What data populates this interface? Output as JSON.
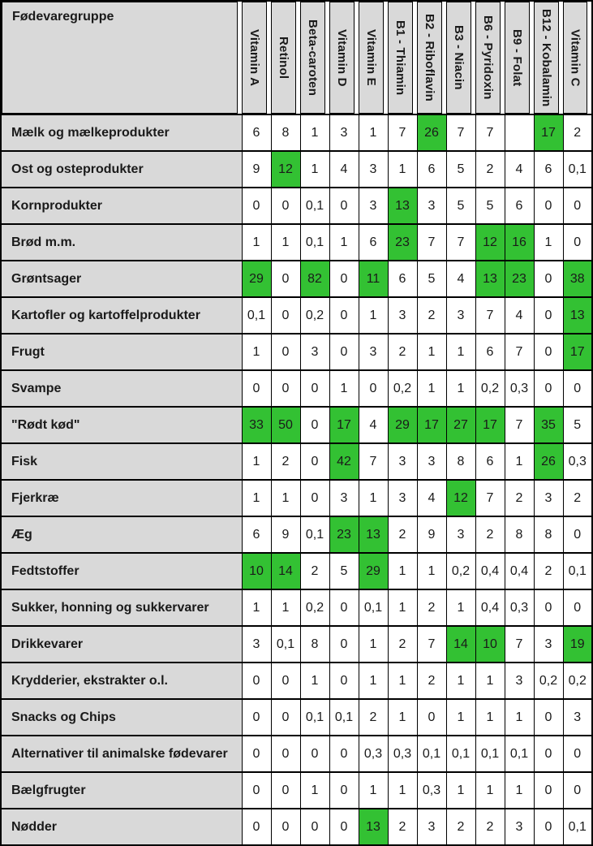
{
  "chart_data": {
    "type": "table",
    "corner_label": "Fødevaregruppe",
    "columns": [
      "Vitamin A",
      "Retinol",
      "Beta-caroten",
      "Vitamin D",
      "Vitamin E",
      "B1 - Thiamin",
      "B2 - Riboflavin",
      "B3 - Niacin",
      "B6 - Pyridoxin",
      "B9 - Folat",
      "B12 - Kobalamin",
      "Vitamin C"
    ],
    "rows": [
      {
        "label": "Mælk og mælkeprodukter",
        "values": [
          "6",
          "8",
          "1",
          "3",
          "1",
          "7",
          "26",
          "7",
          "7",
          "",
          "17",
          "2"
        ],
        "highlighted": [
          6,
          10
        ]
      },
      {
        "label": "Ost og osteprodukter",
        "values": [
          "9",
          "12",
          "1",
          "4",
          "3",
          "1",
          "6",
          "5",
          "2",
          "4",
          "6",
          "0,1"
        ],
        "highlighted": [
          1
        ]
      },
      {
        "label": "Kornprodukter",
        "values": [
          "0",
          "0",
          "0,1",
          "0",
          "3",
          "13",
          "3",
          "5",
          "5",
          "6",
          "0",
          "0"
        ],
        "highlighted": [
          5
        ]
      },
      {
        "label": "Brød m.m.",
        "values": [
          "1",
          "1",
          "0,1",
          "1",
          "6",
          "23",
          "7",
          "7",
          "12",
          "16",
          "1",
          "0"
        ],
        "highlighted": [
          5,
          8,
          9
        ]
      },
      {
        "label": "Grøntsager",
        "values": [
          "29",
          "0",
          "82",
          "0",
          "11",
          "6",
          "5",
          "4",
          "13",
          "23",
          "0",
          "38"
        ],
        "highlighted": [
          0,
          2,
          4,
          8,
          9,
          11
        ]
      },
      {
        "label": "Kartofler og kartoffelprodukter",
        "values": [
          "0,1",
          "0",
          "0,2",
          "0",
          "1",
          "3",
          "2",
          "3",
          "7",
          "4",
          "0",
          "13"
        ],
        "highlighted": [
          11
        ]
      },
      {
        "label": "Frugt",
        "values": [
          "1",
          "0",
          "3",
          "0",
          "3",
          "2",
          "1",
          "1",
          "6",
          "7",
          "0",
          "17"
        ],
        "highlighted": [
          11
        ]
      },
      {
        "label": "Svampe",
        "values": [
          "0",
          "0",
          "0",
          "1",
          "0",
          "0,2",
          "1",
          "1",
          "0,2",
          "0,3",
          "0",
          "0"
        ],
        "highlighted": []
      },
      {
        "label": "\"Rødt kød\"",
        "values": [
          "33",
          "50",
          "0",
          "17",
          "4",
          "29",
          "17",
          "27",
          "17",
          "7",
          "35",
          "5"
        ],
        "highlighted": [
          0,
          1,
          3,
          5,
          6,
          7,
          8,
          10
        ]
      },
      {
        "label": "Fisk",
        "values": [
          "1",
          "2",
          "0",
          "42",
          "7",
          "3",
          "3",
          "8",
          "6",
          "1",
          "26",
          "0,3"
        ],
        "highlighted": [
          3,
          10
        ]
      },
      {
        "label": "Fjerkræ",
        "values": [
          "1",
          "1",
          "0",
          "3",
          "1",
          "3",
          "4",
          "12",
          "7",
          "2",
          "3",
          "2"
        ],
        "highlighted": [
          7
        ]
      },
      {
        "label": "Æg",
        "values": [
          "6",
          "9",
          "0,1",
          "23",
          "13",
          "2",
          "9",
          "3",
          "2",
          "8",
          "8",
          "0"
        ],
        "highlighted": [
          3,
          4
        ]
      },
      {
        "label": "Fedtstoffer",
        "values": [
          "10",
          "14",
          "2",
          "5",
          "29",
          "1",
          "1",
          "0,2",
          "0,4",
          "0,4",
          "2",
          "0,1"
        ],
        "highlighted": [
          0,
          1,
          4
        ]
      },
      {
        "label": "Sukker, honning og sukkervarer",
        "values": [
          "1",
          "1",
          "0,2",
          "0",
          "0,1",
          "1",
          "2",
          "1",
          "0,4",
          "0,3",
          "0",
          "0"
        ],
        "highlighted": []
      },
      {
        "label": "Drikkevarer",
        "values": [
          "3",
          "0,1",
          "8",
          "0",
          "1",
          "2",
          "7",
          "14",
          "10",
          "7",
          "3",
          "19"
        ],
        "highlighted": [
          7,
          8,
          11
        ]
      },
      {
        "label": "Krydderier, ekstrakter o.l.",
        "values": [
          "0",
          "0",
          "1",
          "0",
          "1",
          "1",
          "2",
          "1",
          "1",
          "3",
          "0,2",
          "0,2"
        ],
        "highlighted": []
      },
      {
        "label": "Snacks og Chips",
        "values": [
          "0",
          "0",
          "0,1",
          "0,1",
          "2",
          "1",
          "0",
          "1",
          "1",
          "1",
          "0",
          "3"
        ],
        "highlighted": []
      },
      {
        "label": "Alternativer til animalske fødevarer",
        "values": [
          "0",
          "0",
          "0",
          "0",
          "0,3",
          "0,3",
          "0,1",
          "0,1",
          "0,1",
          "0,1",
          "0",
          "0"
        ],
        "highlighted": []
      },
      {
        "label": "Bælgfrugter",
        "values": [
          "0",
          "0",
          "1",
          "0",
          "1",
          "1",
          "0,3",
          "1",
          "1",
          "1",
          "0",
          "0"
        ],
        "highlighted": []
      },
      {
        "label": "Nødder",
        "values": [
          "0",
          "0",
          "0",
          "0",
          "13",
          "2",
          "3",
          "2",
          "2",
          "3",
          "0",
          "0,1"
        ],
        "highlighted": [
          4
        ]
      }
    ],
    "colors": {
      "highlight_green": "#33c133",
      "header_gray": "#d9d9d9",
      "border_black": "#000000"
    },
    "layout_hints": {
      "grid": "on",
      "header_orientation": "vertical-rotated-90cw",
      "value_decimal_separator": ","
    }
  }
}
